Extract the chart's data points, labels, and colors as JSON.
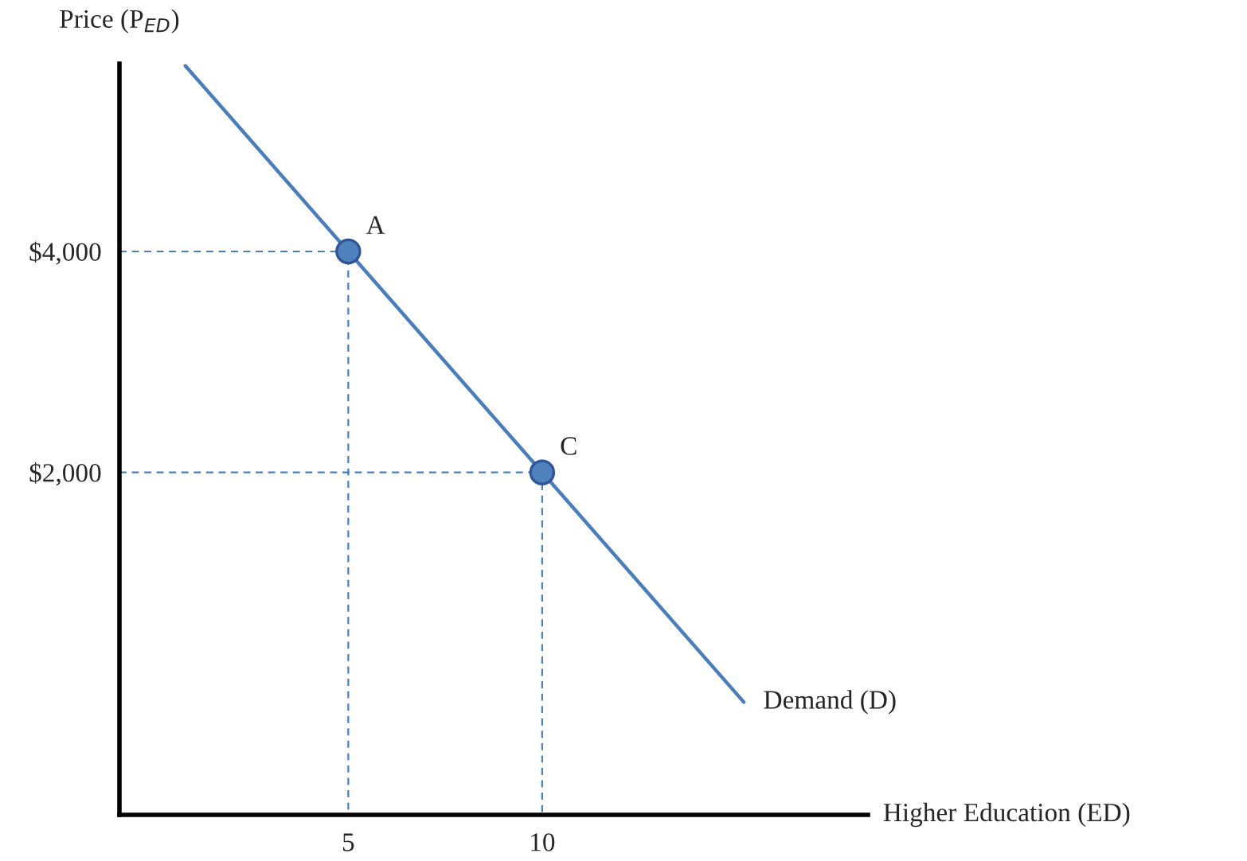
{
  "chart_data": {
    "type": "line",
    "xlabel": "Higher Education (ED)",
    "ylabel": "Price (P$_{ED}$)",
    "xlim": [
      -0.9,
      18.4
    ],
    "ylim": [
      -1100,
      5700
    ],
    "xticks": [
      5,
      10
    ],
    "yticks": [
      {
        "value": 2000,
        "label": "$2,000"
      },
      {
        "value": 4000,
        "label": "$4,000"
      }
    ],
    "grid": false,
    "legend": false,
    "series": [
      {
        "name": "Demand (D)",
        "color": "#4a7ebb",
        "line_style": "solid",
        "x": [
          0.8,
          15.2
        ],
        "values": [
          5680,
          -80
        ]
      },
      {
        "color": "#4a7ebb",
        "line_style": "dashed",
        "x": [
          -0.9,
          5,
          5
        ],
        "values": [
          4000,
          4000,
          -1100
        ]
      },
      {
        "color": "#4a7ebb",
        "line_style": "dashed",
        "x": [
          -0.9,
          10,
          10
        ],
        "values": [
          2000,
          2000,
          -1100
        ]
      },
      {
        "type": "scatter",
        "color": "#4f81bd",
        "marker": "circle",
        "x": [
          5,
          10
        ],
        "values": [
          4000,
          2000
        ]
      }
    ],
    "annotations": [
      {
        "text": "A",
        "x": 5,
        "y": 4000
      },
      {
        "text": "C",
        "x": 10,
        "y": 2000
      }
    ]
  }
}
